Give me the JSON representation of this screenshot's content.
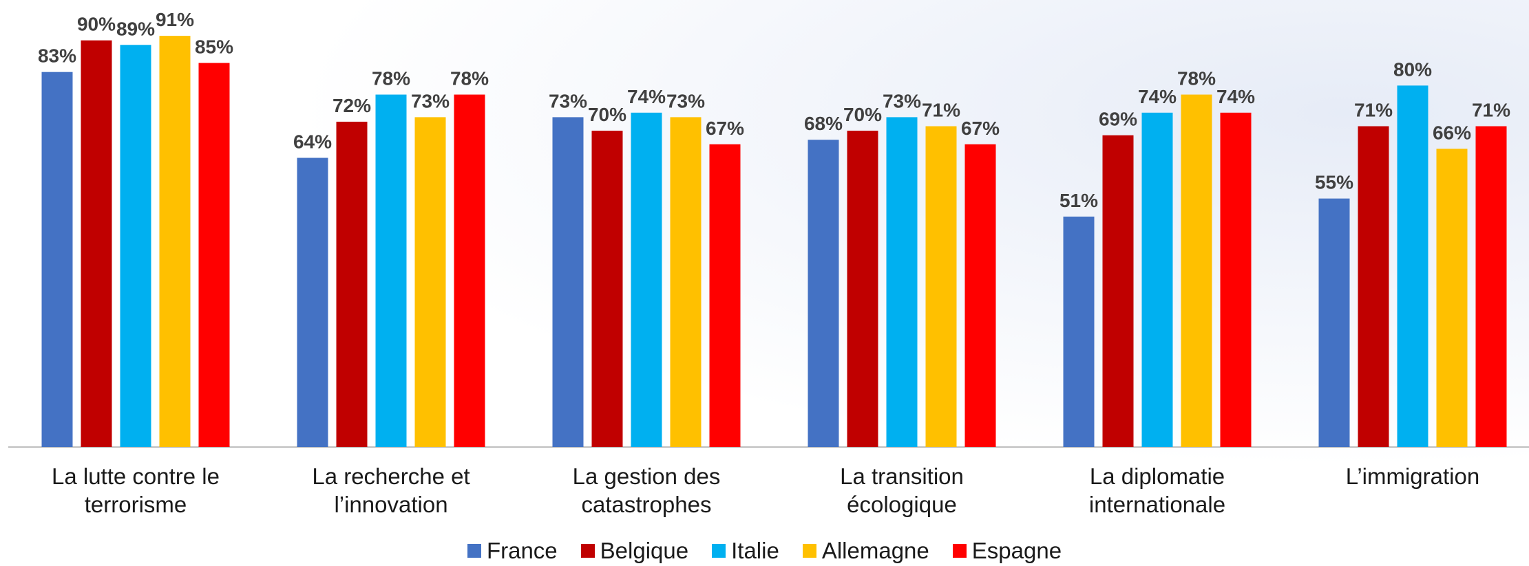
{
  "chart_data": {
    "type": "bar",
    "categories": [
      "La lutte contre le terrorisme",
      "La recherche et l’innovation",
      "La gestion des catastrophes",
      "La transition écologique",
      "La diplomatie internationale",
      "L’immigration"
    ],
    "series": [
      {
        "name": "France",
        "color": "#4472c4",
        "values": [
          83,
          64,
          73,
          68,
          51,
          55
        ],
        "value_labels": [
          "83%",
          "64%",
          "73%",
          "68%",
          "51%",
          "55%"
        ]
      },
      {
        "name": "Belgique",
        "color": "#c00000",
        "values": [
          90,
          72,
          70,
          70,
          69,
          71
        ],
        "value_labels": [
          "90%",
          "72%",
          "70%",
          "70%",
          "69%",
          "71%"
        ]
      },
      {
        "name": "Italie",
        "color": "#00b0f0",
        "values": [
          89,
          78,
          74,
          73,
          74,
          80
        ],
        "value_labels": [
          "89%",
          "78%",
          "74%",
          "73%",
          "74%",
          "80%"
        ]
      },
      {
        "name": "Allemagne",
        "color": "#ffc000",
        "values": [
          91,
          73,
          73,
          71,
          78,
          66
        ],
        "value_labels": [
          "91%",
          "73%",
          "73%",
          "71%",
          "78%",
          "66%"
        ]
      },
      {
        "name": "Espagne",
        "color": "#ff0000",
        "values": [
          85,
          78,
          67,
          67,
          74,
          71
        ],
        "value_labels": [
          "85%",
          "78%",
          "67%",
          "67%",
          "74%",
          "71%"
        ]
      }
    ]
  }
}
